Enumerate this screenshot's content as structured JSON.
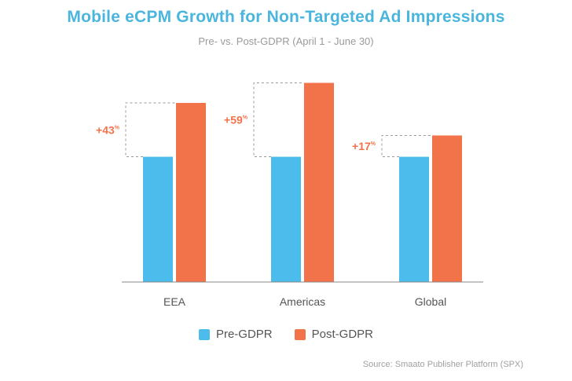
{
  "colors": {
    "title": "#4bb6dd",
    "pre": "#4bbcec",
    "post": "#f2724a",
    "axis": "#888888",
    "bracket": "#9a9a9a"
  },
  "legend": {
    "pre": "Pre-GDPR",
    "post": "Post-GDPR"
  },
  "source": "Source: Smaato Publisher Platform (SPX)",
  "chart_data": {
    "type": "bar",
    "title": "Mobile eCPM Growth for Non-Targeted Ad Impressions",
    "subtitle": "Pre- vs. Post-GDPR (April 1 - June 30)",
    "xlabel": "",
    "ylabel": "",
    "categories": [
      "EEA",
      "Americas",
      "Global"
    ],
    "series": [
      {
        "name": "Pre-GDPR",
        "values": [
          100,
          100,
          100
        ]
      },
      {
        "name": "Post-GDPR",
        "values": [
          143,
          159,
          117
        ]
      }
    ],
    "growth_labels": [
      {
        "category": "EEA",
        "value": "+43",
        "unit": "%"
      },
      {
        "category": "Americas",
        "value": "+59",
        "unit": "%"
      },
      {
        "category": "Global",
        "value": "+17",
        "unit": "%"
      }
    ],
    "ylim": [
      0,
      180
    ],
    "grid": false,
    "legend_position": "bottom-center"
  }
}
